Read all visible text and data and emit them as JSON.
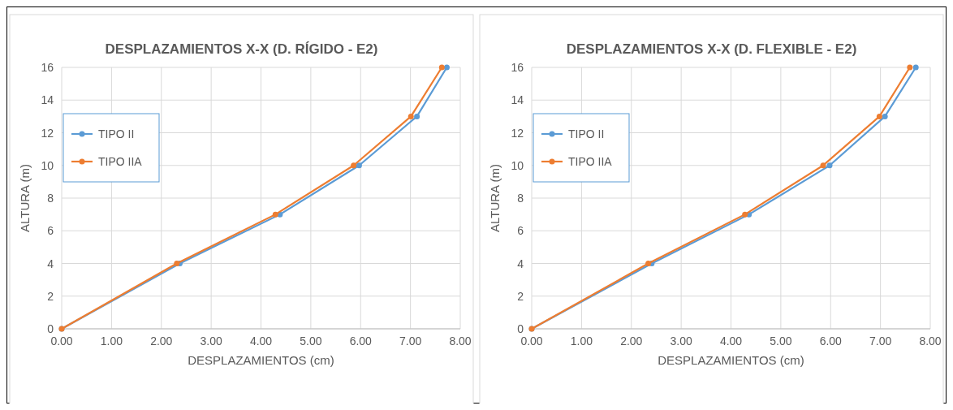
{
  "chart_data": [
    {
      "type": "line",
      "title": "DESPLAZAMIENTOS  X-X (D. RÍGIDO - E2)",
      "xlabel": "DESPLAZAMIENTOS  (cm)",
      "ylabel": "ALTURA (m)",
      "xlim": [
        0,
        8
      ],
      "xticks": [
        {
          "value": 0,
          "label": "0.00"
        },
        {
          "value": 1,
          "label": "1.00"
        },
        {
          "value": 2,
          "label": "2.00"
        },
        {
          "value": 3,
          "label": "3.00"
        },
        {
          "value": 4,
          "label": "4.00"
        },
        {
          "value": 5,
          "label": "5.00"
        },
        {
          "value": 6,
          "label": "6.00"
        },
        {
          "value": 7,
          "label": "7.00"
        },
        {
          "value": 8,
          "label": "8.00"
        }
      ],
      "ylim": [
        0,
        16
      ],
      "yticks": [
        0,
        2,
        4,
        6,
        8,
        10,
        12,
        14,
        16
      ],
      "grid": true,
      "legend": "top left",
      "marker": "circle",
      "series": [
        {
          "name": "TIPO II",
          "color": "#5b9bd5",
          "x": [
            0,
            2.37,
            4.38,
            5.97,
            7.13,
            7.73
          ],
          "values": [
            0,
            4,
            7,
            10,
            13,
            16
          ]
        },
        {
          "name": "TIPO IIA",
          "color": "#ed7d31",
          "x": [
            0,
            2.31,
            4.29,
            5.86,
            7.01,
            7.63
          ],
          "values": [
            0,
            4,
            7,
            10,
            13,
            16
          ]
        }
      ]
    },
    {
      "type": "line",
      "title": "DESPLAZAMIENTOS  X-X (D. FLEXIBLE - E2)",
      "xlabel": "DESPLAZAMIENTOS  (cm)",
      "ylabel": "ALTURA (m)",
      "xlim": [
        0,
        8
      ],
      "xticks": [
        {
          "value": 0,
          "label": "0.00"
        },
        {
          "value": 1,
          "label": "1.00"
        },
        {
          "value": 2,
          "label": "2.00"
        },
        {
          "value": 3,
          "label": "3.00"
        },
        {
          "value": 4,
          "label": "4.00"
        },
        {
          "value": 5,
          "label": "5.00"
        },
        {
          "value": 6,
          "label": "6.00"
        },
        {
          "value": 7,
          "label": "7.00"
        },
        {
          "value": 8,
          "label": "8.00"
        }
      ],
      "ylim": [
        0,
        16
      ],
      "yticks": [
        0,
        2,
        4,
        6,
        8,
        10,
        12,
        14,
        16
      ],
      "grid": true,
      "legend": "top left",
      "marker": "circle",
      "series": [
        {
          "name": "TIPO II",
          "color": "#5b9bd5",
          "x": [
            0,
            2.41,
            4.36,
            5.98,
            7.09,
            7.71
          ],
          "values": [
            0,
            4,
            7,
            10,
            13,
            16
          ]
        },
        {
          "name": "TIPO IIA",
          "color": "#ed7d31",
          "x": [
            0,
            2.34,
            4.28,
            5.85,
            6.98,
            7.59
          ],
          "values": [
            0,
            4,
            7,
            10,
            13,
            16
          ]
        }
      ]
    }
  ]
}
